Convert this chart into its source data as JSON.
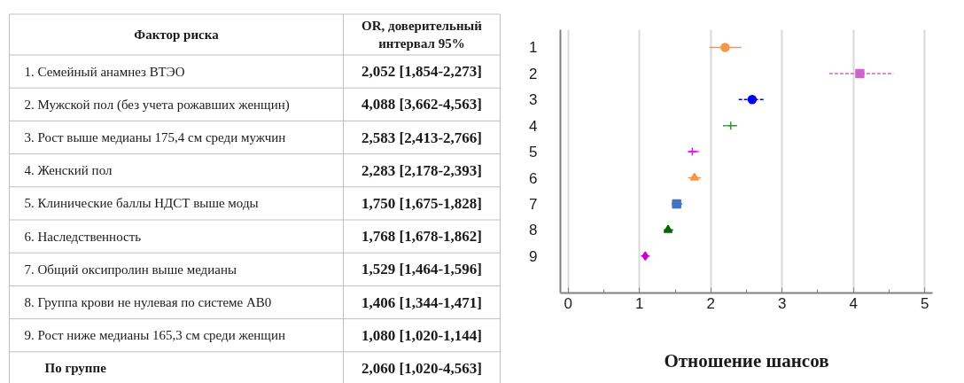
{
  "chart_data": [
    {
      "type": "other",
      "annotations": [
        "Фактор риска",
        "OR, доверительный интервал 95%"
      ],
      "categories": [
        "1. Семейный анамнез ВТЭО",
        "2. Мужской пол (без учета рожавших женщин)",
        "3. Рост выше медианы 175,4 см среди мужчин",
        "4. Женский пол",
        "5. Клинические баллы НДСТ выше моды",
        "6. Наследственность",
        "7. Общий оксипролин выше медианы",
        "8. Группа крови не нулевая по системе АВ0",
        "9. Рост ниже медианы 165,3 см среди женщин",
        "По группе"
      ],
      "value_labels": [
        "2,052 [1,854-2,273]",
        "4,088 [3,662-4,563]",
        "2,583 [2,413-2,766]",
        "2,283 [2,178-2,393]",
        "1,750 [1,675-1,828]",
        "1,768 [1,678-1,862]",
        "1,529 [1,464-1,596]",
        "1,406 [1,344-1,471]",
        "1,080 [1,020-1,144]",
        "2,060 [1,020-4,563]"
      ]
    },
    {
      "type": "scatter",
      "orientation": "horizontal",
      "xlabel": "Отношение шансов",
      "categories": [
        "1",
        "2",
        "3",
        "4",
        "5",
        "6",
        "7",
        "8",
        "9"
      ],
      "xlim": [
        -0.11,
        5.11
      ],
      "xticks": [
        0,
        {
          "value": 0.5,
          "label": null
        },
        1,
        {
          "value": 1.5,
          "label": null
        },
        2,
        {
          "value": 2.5,
          "label": null
        },
        3,
        {
          "value": 3.5,
          "label": null
        },
        4,
        {
          "value": 4.5,
          "label": null
        },
        5
      ],
      "grid": "x",
      "series": [
        {
          "color": "#f79646",
          "marker": "circle",
          "line_style": "solid",
          "values": [
            2.2,
            null,
            null,
            null,
            null,
            null,
            null,
            null,
            null
          ],
          "errors": [
            [
              1.98,
              2.43
            ],
            null,
            null,
            null,
            null,
            null,
            null,
            null,
            null
          ]
        },
        {
          "color": "#cc66cc",
          "marker": "square",
          "line_style": "dashed",
          "values": [
            null,
            4.09,
            null,
            null,
            null,
            null,
            null,
            null,
            null
          ],
          "errors": [
            null,
            [
              3.66,
              4.56
            ],
            null,
            null,
            null,
            null,
            null,
            null,
            null
          ]
        },
        {
          "color": "#0000ee",
          "marker": "circle",
          "line_style": "dashed",
          "values": [
            null,
            null,
            2.58,
            null,
            null,
            null,
            null,
            null,
            null
          ],
          "errors": [
            null,
            null,
            [
              2.39,
              2.75
            ],
            null,
            null,
            null,
            null,
            null,
            null
          ]
        },
        {
          "color": "#339933",
          "marker": "cross",
          "line_style": "dashed",
          "values": [
            null,
            null,
            null,
            2.28,
            null,
            null,
            null,
            null,
            null
          ],
          "errors": [
            null,
            null,
            null,
            [
              2.17,
              2.38
            ],
            null,
            null,
            null,
            null,
            null
          ]
        },
        {
          "color": "#ff00ff",
          "marker": "cross",
          "line_style": "solid",
          "values": [
            null,
            null,
            null,
            null,
            1.74,
            null,
            null,
            null,
            null
          ],
          "errors": [
            null,
            null,
            null,
            null,
            [
              1.68,
              1.83
            ],
            null,
            null,
            null,
            null
          ]
        },
        {
          "color": "#f79646",
          "marker": "triangle",
          "line_style": "solid",
          "values": [
            null,
            null,
            null,
            null,
            null,
            1.77,
            null,
            null,
            null
          ],
          "errors": [
            null,
            null,
            null,
            null,
            null,
            [
              1.68,
              1.86
            ],
            null,
            null,
            null
          ]
        },
        {
          "color": "#4472c4",
          "marker": "square",
          "line_style": "solid",
          "values": [
            null,
            null,
            null,
            null,
            null,
            null,
            1.52,
            null,
            null
          ],
          "errors": [
            null,
            null,
            null,
            null,
            null,
            null,
            [
              1.45,
              1.6
            ],
            null,
            null
          ]
        },
        {
          "color": "#006400",
          "marker": "triangle",
          "line_style": "solid",
          "values": [
            null,
            null,
            null,
            null,
            null,
            null,
            null,
            1.4,
            null
          ],
          "errors": [
            null,
            null,
            null,
            null,
            null,
            null,
            null,
            [
              1.34,
              1.47
            ],
            null
          ]
        },
        {
          "color": "#cc00cc",
          "marker": "diamond",
          "line_style": "solid",
          "values": [
            null,
            null,
            null,
            null,
            null,
            null,
            null,
            null,
            1.08
          ],
          "errors": [
            null,
            null,
            null,
            null,
            null,
            null,
            null,
            null,
            [
              1.02,
              1.14
            ]
          ]
        }
      ]
    }
  ]
}
